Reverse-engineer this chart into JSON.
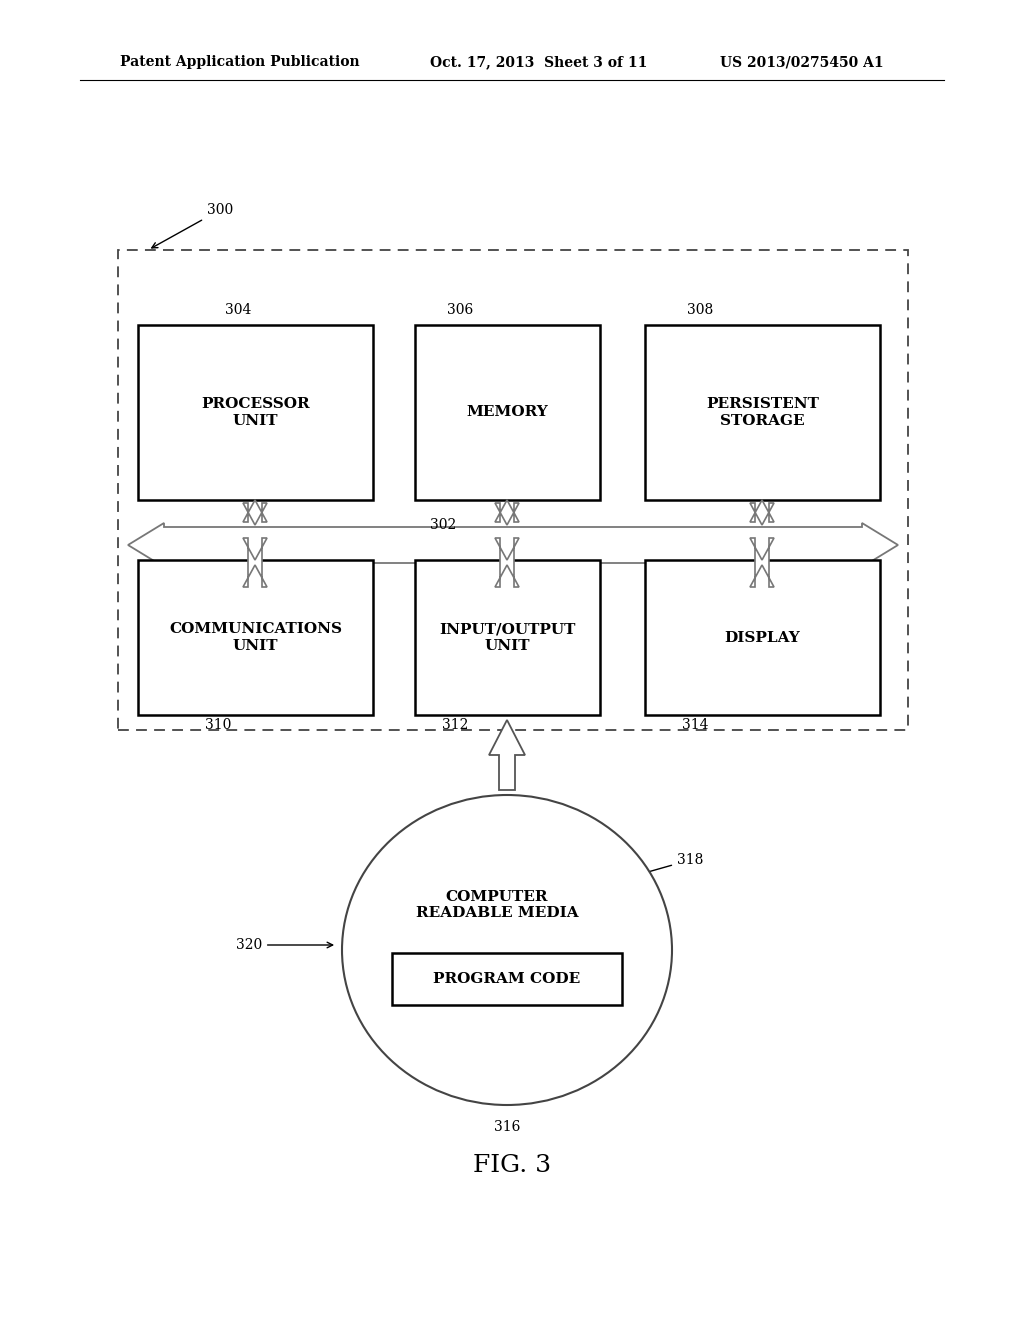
{
  "bg_color": "#ffffff",
  "header_left": "Patent Application Publication",
  "header_mid": "Oct. 17, 2013  Sheet 3 of 11",
  "header_right": "US 2013/0275450 A1",
  "fig_label": "FIG. 3",
  "label_300": "300",
  "label_302": "302",
  "label_304": "304",
  "label_306": "306",
  "label_308": "308",
  "label_310": "310",
  "label_312": "312",
  "label_314": "314",
  "label_316": "316",
  "label_318": "318",
  "label_320": "320",
  "box_proc_text": "PROCESSOR\nUNIT",
  "box_mem_text": "MEMORY",
  "box_persist_text": "PERSISTENT\nSTORAGE",
  "box_comm_text": "COMMUNICATIONS\nUNIT",
  "box_io_text": "INPUT/OUTPUT\nUNIT",
  "box_disp_text": "DISPLAY",
  "circle_text1": "COMPUTER\nREADABLE MEDIA",
  "box_prog_text": "PROGRAM CODE",
  "text_color": "#000000",
  "box_line_color": "#000000",
  "dashed_line_color": "#444444",
  "arrow_color": "#888888",
  "bus_arrow_color": "#aaaaaa"
}
